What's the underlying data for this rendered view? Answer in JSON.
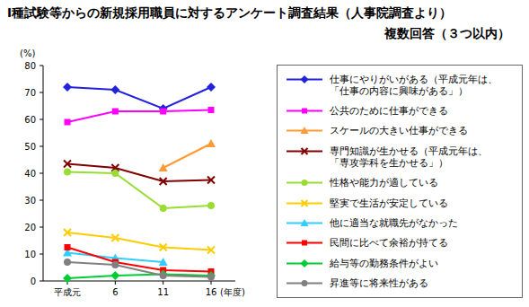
{
  "chart_data": {
    "type": "line",
    "title": "Ⅰ種試験等からの新規採用職員に対するアンケート調査結果（人事院調査より）",
    "subtitle": "複数回答（３つ以内）",
    "y_label": "(%)",
    "x_label": "(年度)",
    "categories": [
      "平成元",
      "6",
      "11",
      "16"
    ],
    "ylim": [
      0,
      80
    ],
    "yticks": [
      0,
      10,
      20,
      30,
      40,
      50,
      60,
      70,
      80
    ],
    "grid": false,
    "legend": "right",
    "series": [
      {
        "name": "仕事にやりがいがある（平成元年は、「仕事の内容に興味がある」）",
        "color": "#2222dd",
        "marker": "diamond",
        "values": [
          72,
          71,
          64,
          72
        ]
      },
      {
        "name": "公共のために仕事ができる",
        "color": "#ff00ff",
        "marker": "square",
        "values": [
          59,
          63,
          63,
          63.5
        ]
      },
      {
        "name": "スケールの大きい仕事ができる",
        "color": "#ff9933",
        "marker": "triangle",
        "values": [
          null,
          null,
          42,
          51
        ]
      },
      {
        "name": "専門知識が生かせる（平成元年は、「専攻学科を生かせる」）",
        "color": "#800000",
        "marker": "x",
        "values": [
          43.5,
          42,
          37,
          37.5
        ]
      },
      {
        "name": "性格や能力が適している",
        "color": "#99dd33",
        "marker": "circle",
        "values": [
          40.5,
          40,
          27,
          28
        ]
      },
      {
        "name": "堅実で生活が安定している",
        "color": "#ffcc00",
        "marker": "x",
        "values": [
          18,
          16,
          12.5,
          11.5
        ]
      },
      {
        "name": "他に適当な就職先がなかった",
        "color": "#33ccff",
        "marker": "triangle",
        "values": [
          10.5,
          8.5,
          7,
          null
        ]
      },
      {
        "name": "民間に比べて余裕が持てる",
        "color": "#ff0000",
        "marker": "square",
        "values": [
          12.5,
          7,
          4,
          3.5
        ]
      },
      {
        "name": "給与等の勤務条件がよい",
        "color": "#00cc33",
        "marker": "diamond",
        "values": [
          1,
          2,
          2.5,
          2
        ]
      },
      {
        "name": "昇進等に将来性がある",
        "color": "#808080",
        "marker": "circle",
        "values": [
          7,
          6,
          2,
          1.5
        ]
      }
    ]
  }
}
